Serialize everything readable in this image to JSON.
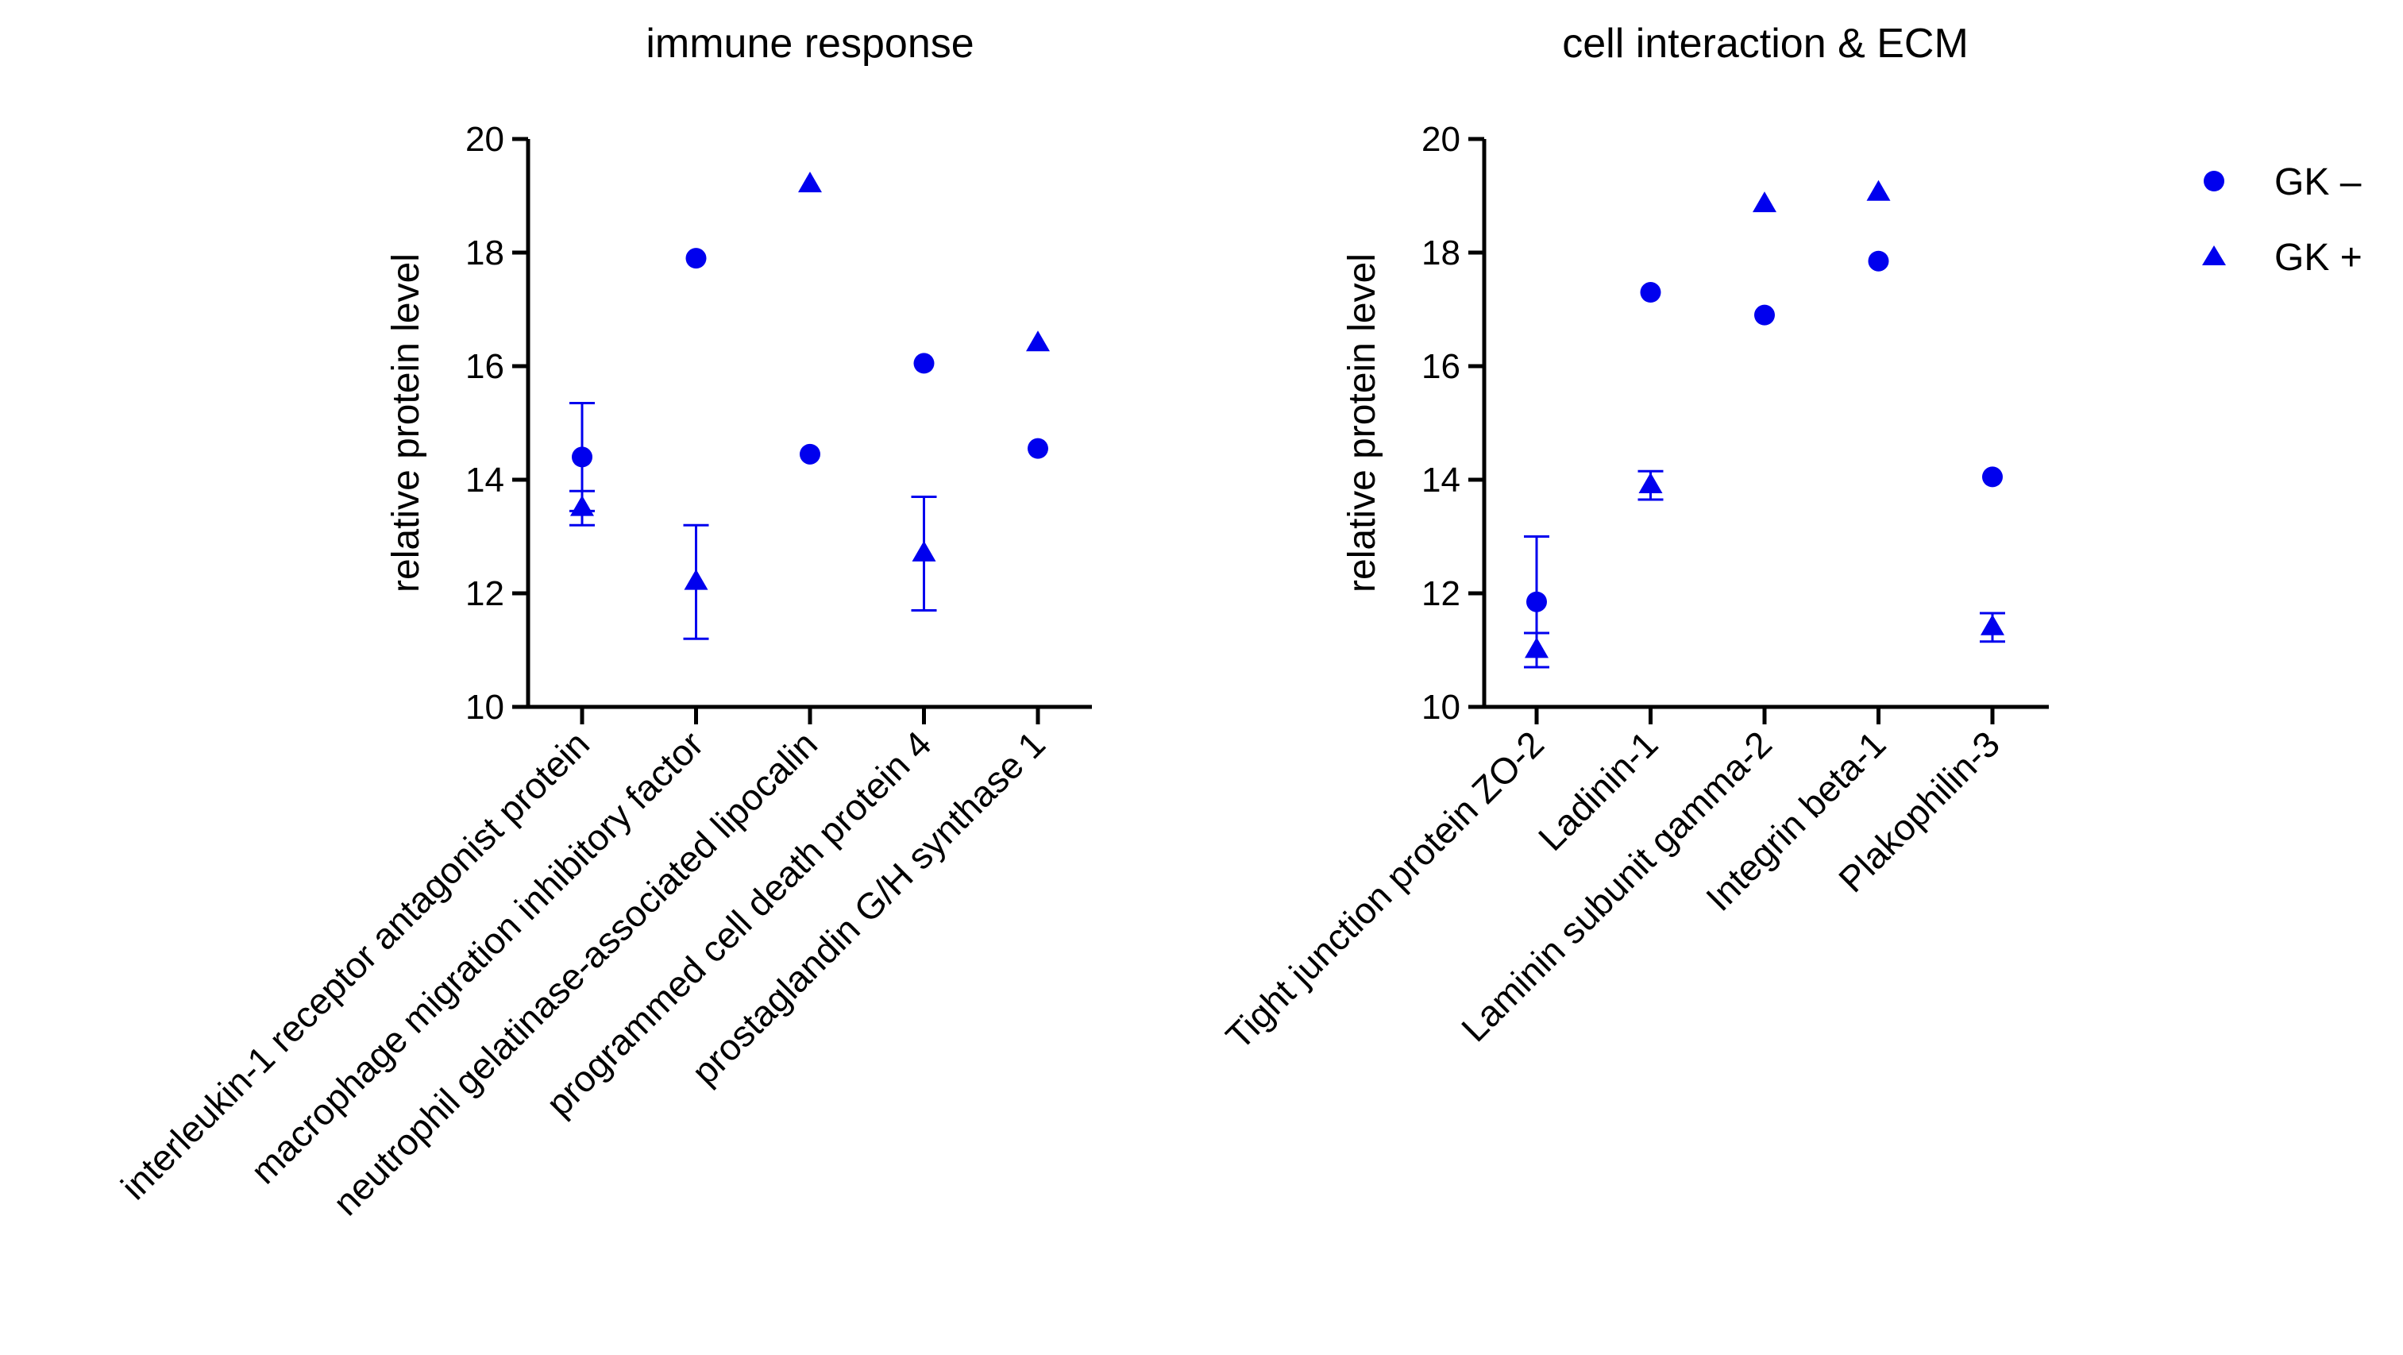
{
  "colors": {
    "marker": "#0000ee",
    "axis": "#000000"
  },
  "legend": [
    {
      "label": "GK –",
      "marker": "circle"
    },
    {
      "label": "GK +",
      "marker": "triangle"
    }
  ],
  "chart_data": [
    {
      "type": "scatter",
      "title": "immune response",
      "xlabel": "",
      "ylabel": "relative protein level",
      "ylim": [
        10,
        20
      ],
      "yticks": [
        10,
        12,
        14,
        16,
        18,
        20
      ],
      "categories": [
        "interleukin-1 receptor antagonist protein",
        "macrophage migration inhibitory factor",
        "neutrophil gelatinase-associated lipocalin",
        "programmed cell death protein 4",
        "prostaglandin G/H synthase 1"
      ],
      "series": [
        {
          "name": "GK –",
          "marker": "circle",
          "values": [
            14.4,
            17.9,
            14.45,
            16.05,
            14.55
          ],
          "err": [
            0.95,
            null,
            null,
            null,
            null
          ]
        },
        {
          "name": "GK +",
          "marker": "triangle",
          "values": [
            13.5,
            12.2,
            19.2,
            12.7,
            16.4
          ],
          "err": [
            0.3,
            1.0,
            null,
            1.0,
            null
          ]
        }
      ]
    },
    {
      "type": "scatter",
      "title": "cell interaction & ECM",
      "xlabel": "",
      "ylabel": "relative protein level",
      "ylim": [
        10,
        20
      ],
      "yticks": [
        10,
        12,
        14,
        16,
        18,
        20
      ],
      "categories": [
        "Tight junction protein ZO-2",
        "Ladinin-1",
        "Laminin subunit gamma-2",
        "Integrin beta-1",
        "Plakophilin-3"
      ],
      "series": [
        {
          "name": "GK –",
          "marker": "circle",
          "values": [
            11.85,
            17.3,
            16.9,
            17.85,
            14.05
          ],
          "err": [
            1.15,
            null,
            null,
            null,
            null
          ]
        },
        {
          "name": "GK +",
          "marker": "triangle",
          "values": [
            11.0,
            13.9,
            18.85,
            19.05,
            11.4
          ],
          "err": [
            0.3,
            0.25,
            null,
            null,
            0.25
          ]
        }
      ]
    }
  ]
}
